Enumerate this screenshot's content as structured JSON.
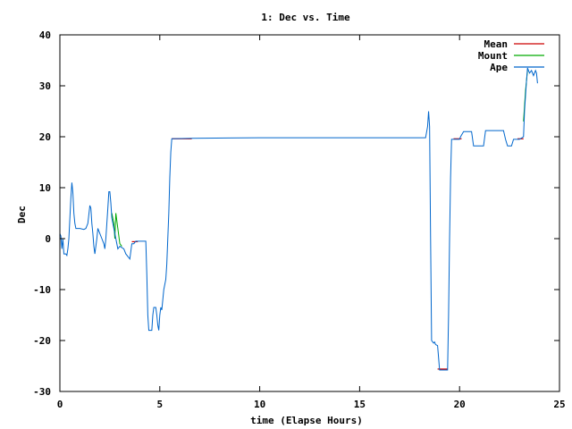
{
  "chart_data": {
    "type": "line",
    "title": "1: Dec vs. Time",
    "xlabel": "time (Elapse Hours)",
    "ylabel": "Dec",
    "xlim": [
      0,
      25
    ],
    "ylim": [
      -30,
      40
    ],
    "x_ticks": [
      "0",
      "5",
      "10",
      "15",
      "20",
      "25"
    ],
    "y_ticks": [
      "-30",
      "-20",
      "-10",
      "0",
      "10",
      "20",
      "30",
      "40"
    ],
    "grid": false,
    "legend_position": "top-right",
    "series": [
      {
        "name": "Mean",
        "color": "#cc0000",
        "points": [
          [
            5.6,
            19.6
          ],
          [
            6.6,
            19.6
          ],
          [
            3.6,
            -0.6
          ],
          [
            3.9,
            -0.6
          ],
          [
            18.9,
            -25.6
          ],
          [
            19.4,
            -25.6
          ],
          [
            19.7,
            19.6
          ],
          [
            20.1,
            19.6
          ],
          [
            22.9,
            19.6
          ],
          [
            23.2,
            19.6
          ]
        ]
      },
      {
        "name": "Mount",
        "color": "#00aa00",
        "points": [
          [
            2.6,
            5.0
          ],
          [
            2.7,
            3.0
          ],
          [
            2.75,
            0.0
          ],
          [
            2.8,
            5.0
          ],
          [
            2.9,
            2.0
          ],
          [
            3.0,
            -1.0
          ],
          [
            3.1,
            -1.5
          ],
          [
            23.2,
            23.0
          ],
          [
            23.25,
            26.0
          ],
          [
            23.3,
            29.0
          ],
          [
            23.35,
            31.0
          ],
          [
            23.4,
            33.0
          ]
        ]
      },
      {
        "name": "Ape",
        "color": "#0066cc",
        "points": [
          [
            0.0,
            1.0
          ],
          [
            0.05,
            0.5
          ],
          [
            0.1,
            -2.0
          ],
          [
            0.15,
            0.0
          ],
          [
            0.2,
            -3.0
          ],
          [
            0.3,
            -3.0
          ],
          [
            0.35,
            -3.3
          ],
          [
            0.4,
            -2.0
          ],
          [
            0.45,
            0.0
          ],
          [
            0.5,
            4.0
          ],
          [
            0.55,
            8.0
          ],
          [
            0.6,
            11.0
          ],
          [
            0.65,
            9.0
          ],
          [
            0.7,
            5.0
          ],
          [
            0.75,
            3.0
          ],
          [
            0.8,
            2.0
          ],
          [
            1.0,
            2.0
          ],
          [
            1.2,
            1.8
          ],
          [
            1.3,
            2.0
          ],
          [
            1.4,
            3.0
          ],
          [
            1.5,
            6.5
          ],
          [
            1.55,
            6.0
          ],
          [
            1.6,
            3.0
          ],
          [
            1.65,
            1.0
          ],
          [
            1.7,
            -1.5
          ],
          [
            1.75,
            -3.0
          ],
          [
            1.8,
            -1.5
          ],
          [
            1.85,
            0.0
          ],
          [
            1.9,
            2.0
          ],
          [
            2.0,
            1.0
          ],
          [
            2.1,
            0.0
          ],
          [
            2.2,
            -1.0
          ],
          [
            2.25,
            -2.0
          ],
          [
            2.3,
            0.0
          ],
          [
            2.35,
            3.0
          ],
          [
            2.4,
            6.0
          ],
          [
            2.45,
            9.2
          ],
          [
            2.5,
            9.2
          ],
          [
            2.55,
            7.0
          ],
          [
            2.6,
            4.0
          ],
          [
            2.7,
            2.0
          ],
          [
            2.8,
            0.0
          ],
          [
            2.9,
            -2.0
          ],
          [
            3.0,
            -1.5
          ],
          [
            3.2,
            -2.0
          ],
          [
            3.3,
            -3.0
          ],
          [
            3.4,
            -3.5
          ],
          [
            3.5,
            -4.0
          ],
          [
            3.6,
            -1.0
          ],
          [
            3.7,
            -1.0
          ],
          [
            3.8,
            -0.5
          ],
          [
            4.0,
            -0.5
          ],
          [
            4.3,
            -0.5
          ],
          [
            4.35,
            -7.0
          ],
          [
            4.4,
            -15.0
          ],
          [
            4.45,
            -18.0
          ],
          [
            4.5,
            -18.0
          ],
          [
            4.6,
            -18.0
          ],
          [
            4.65,
            -15.0
          ],
          [
            4.7,
            -13.5
          ],
          [
            4.8,
            -13.5
          ],
          [
            4.85,
            -15.0
          ],
          [
            4.9,
            -17.0
          ],
          [
            4.95,
            -18.0
          ],
          [
            5.0,
            -15.0
          ],
          [
            5.05,
            -13.5
          ],
          [
            5.1,
            -14.0
          ],
          [
            5.15,
            -12.0
          ],
          [
            5.2,
            -10.0
          ],
          [
            5.3,
            -8.0
          ],
          [
            5.35,
            -5.0
          ],
          [
            5.4,
            0.0
          ],
          [
            5.45,
            5.0
          ],
          [
            5.5,
            12.0
          ],
          [
            5.55,
            17.0
          ],
          [
            5.6,
            19.6
          ],
          [
            6.6,
            19.7
          ],
          [
            10.0,
            19.8
          ],
          [
            14.0,
            19.8
          ],
          [
            18.3,
            19.8
          ],
          [
            18.4,
            22.0
          ],
          [
            18.45,
            25.0
          ],
          [
            18.5,
            22.0
          ],
          [
            18.55,
            0.0
          ],
          [
            18.6,
            -20.0
          ],
          [
            18.7,
            -20.5
          ],
          [
            18.75,
            -20.3
          ],
          [
            18.8,
            -20.8
          ],
          [
            18.9,
            -21.0
          ],
          [
            19.0,
            -25.8
          ],
          [
            19.2,
            -25.8
          ],
          [
            19.4,
            -25.8
          ],
          [
            19.45,
            -15.0
          ],
          [
            19.5,
            0.0
          ],
          [
            19.55,
            12.0
          ],
          [
            19.6,
            19.5
          ],
          [
            20.0,
            19.5
          ],
          [
            20.05,
            20.0
          ],
          [
            20.2,
            21.0
          ],
          [
            20.6,
            21.0
          ],
          [
            20.7,
            18.2
          ],
          [
            21.2,
            18.2
          ],
          [
            21.3,
            21.2
          ],
          [
            22.2,
            21.2
          ],
          [
            22.3,
            19.5
          ],
          [
            22.4,
            18.2
          ],
          [
            22.6,
            18.2
          ],
          [
            22.7,
            19.5
          ],
          [
            23.0,
            19.5
          ],
          [
            23.2,
            20.0
          ],
          [
            23.25,
            25.0
          ],
          [
            23.3,
            28.0
          ],
          [
            23.35,
            31.0
          ],
          [
            23.4,
            33.5
          ],
          [
            23.5,
            32.5
          ],
          [
            23.6,
            33.0
          ],
          [
            23.7,
            32.0
          ],
          [
            23.8,
            33.0
          ],
          [
            23.85,
            32.5
          ],
          [
            23.9,
            30.5
          ]
        ]
      }
    ]
  }
}
